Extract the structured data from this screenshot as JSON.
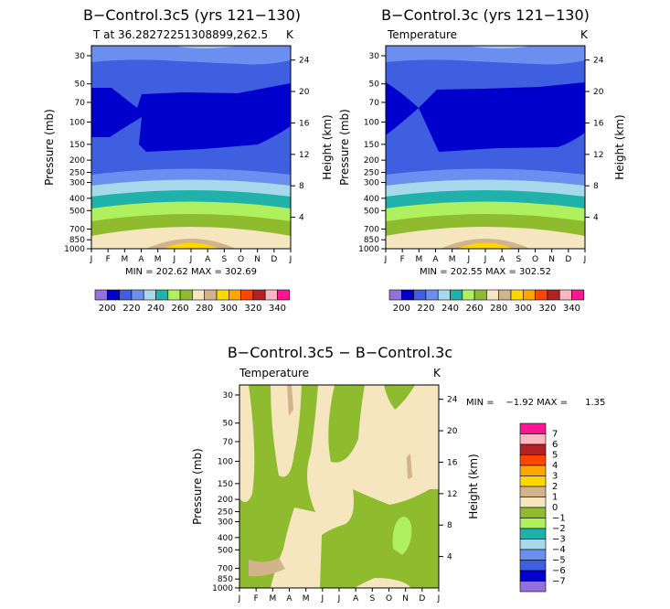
{
  "panels": [
    {
      "title": "B−Control.3c5 (yrs 121−130)",
      "subtitle": "T at 36.28272251308899,262.5",
      "units": "K",
      "minmax": "MIN = 202.62 MAX = 302.69",
      "ylabel": "Pressure (mb)",
      "y2label": "Height (km)"
    },
    {
      "title": "B−Control.3c (yrs 121−130)",
      "subtitle": "Temperature",
      "units": "K",
      "minmax": "MIN = 202.55 MAX = 302.52",
      "ylabel": "Pressure (mb)",
      "y2label": "Height (km)"
    },
    {
      "title": "B−Control.3c5 − B−Control.3c",
      "subtitle": "Temperature",
      "units": "K",
      "minmax": "MIN =    −1.92 MAX =      1.35",
      "ylabel": "Pressure (mb)",
      "y2label": "Height (km)"
    }
  ],
  "months": [
    "J",
    "F",
    "M",
    "A",
    "M",
    "J",
    "J",
    "A",
    "S",
    "O",
    "N",
    "D",
    "J"
  ],
  "pressure_ticks": [
    "30",
    "50",
    "70",
    "100",
    "150",
    "200",
    "250",
    "300",
    "400",
    "500",
    "700",
    "850",
    "1000"
  ],
  "height_ticks": [
    "24",
    "20",
    "16",
    "12",
    "8",
    "4"
  ],
  "temp_colorbar": {
    "colors": [
      "#9370db",
      "#0000cd",
      "#3d5fe0",
      "#6b8ff0",
      "#a7d8ec",
      "#20b2aa",
      "#aef05e",
      "#8fbc2e",
      "#f5e6c0",
      "#d2b48c",
      "#ffd700",
      "#ffa500",
      "#ff4500",
      "#b22222",
      "#ffb6c1",
      "#ff1493"
    ],
    "labels": [
      "200",
      "220",
      "240",
      "260",
      "280",
      "300",
      "320",
      "340"
    ]
  },
  "diff_colorbar": {
    "colors": [
      "#9370db",
      "#0000cd",
      "#3d5fe0",
      "#6b8ff0",
      "#a7d8ec",
      "#20b2aa",
      "#aef05e",
      "#8fbc2e",
      "#f5e6c0",
      "#d2b48c",
      "#ffd700",
      "#ffa500",
      "#ff4500",
      "#b22222",
      "#ffb6c1",
      "#ff1493"
    ],
    "labels": [
      "7",
      "6",
      "5",
      "4",
      "3",
      "2",
      "1",
      "0",
      "−1",
      "−2",
      "−3",
      "−4",
      "−5",
      "−6",
      "−7"
    ]
  },
  "chart_data": [
    {
      "type": "heatmap",
      "title": "B−Control.3c5 (yrs 121−130)",
      "variable": "T at 36.28272251308899,262.5",
      "units": "K",
      "x": [
        "J",
        "F",
        "M",
        "A",
        "M",
        "J",
        "J",
        "A",
        "S",
        "O",
        "N",
        "D",
        "J"
      ],
      "y_pressure_mb": [
        30,
        50,
        70,
        100,
        150,
        200,
        250,
        300,
        400,
        500,
        700,
        850,
        1000
      ],
      "min": 202.62,
      "max": 302.69,
      "contour_levels": [
        200,
        210,
        220,
        230,
        240,
        250,
        260,
        270,
        280,
        290,
        300,
        310,
        320,
        330,
        340
      ]
    },
    {
      "type": "heatmap",
      "title": "B−Control.3c (yrs 121−130)",
      "variable": "Temperature",
      "units": "K",
      "x": [
        "J",
        "F",
        "M",
        "A",
        "M",
        "J",
        "J",
        "A",
        "S",
        "O",
        "N",
        "D",
        "J"
      ],
      "y_pressure_mb": [
        30,
        50,
        70,
        100,
        150,
        200,
        250,
        300,
        400,
        500,
        700,
        850,
        1000
      ],
      "min": 202.55,
      "max": 302.52,
      "contour_levels": [
        200,
        210,
        220,
        230,
        240,
        250,
        260,
        270,
        280,
        290,
        300,
        310,
        320,
        330,
        340
      ]
    },
    {
      "type": "heatmap",
      "title": "B−Control.3c5 − B−Control.3c",
      "variable": "Temperature",
      "units": "K",
      "x": [
        "J",
        "F",
        "M",
        "A",
        "M",
        "J",
        "J",
        "A",
        "S",
        "O",
        "N",
        "D",
        "J"
      ],
      "y_pressure_mb": [
        30,
        50,
        70,
        100,
        150,
        200,
        250,
        300,
        400,
        500,
        700,
        850,
        1000
      ],
      "min": -1.92,
      "max": 1.35,
      "contour_levels": [
        -7,
        -6,
        -5,
        -4,
        -3,
        -2,
        -1,
        0,
        1,
        2,
        3,
        4,
        5,
        6,
        7
      ]
    }
  ]
}
